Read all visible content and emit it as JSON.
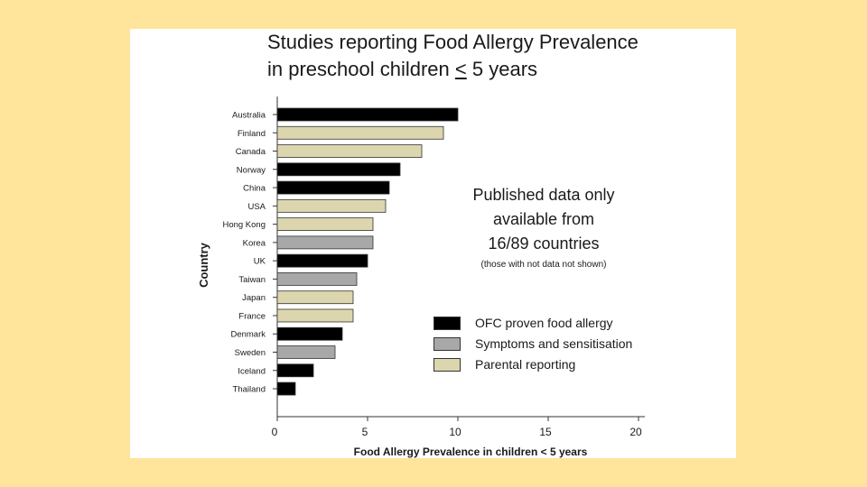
{
  "slide": {
    "title_line1": "Studies reporting Food Allergy Prevalence",
    "title_line2_prefix": "in preschool children ",
    "title_line2_symbol": "<",
    "title_line2_suffix": " 5 years"
  },
  "annotation": {
    "main_lines": [
      "Published data only",
      "available from",
      "16/89 countries"
    ],
    "sub": "(those with not data not shown)"
  },
  "legend": [
    {
      "label": "OFC proven food allergy",
      "color": "#000000"
    },
    {
      "label": "Symptoms and sensitisation",
      "color": "#A8A8A8"
    },
    {
      "label": "Parental reporting",
      "color": "#DCD6AF"
    }
  ],
  "chart_data": {
    "type": "bar",
    "orientation": "horizontal",
    "title": "Studies reporting Food Allergy Prevalence in preschool children < 5 years",
    "xlabel": "Food Allergy Prevalence in children < 5 years",
    "ylabel": "Country",
    "xlim": [
      0,
      20
    ],
    "xticks": [
      0,
      5,
      10,
      15,
      20
    ],
    "categories": [
      "Australia",
      "Finland",
      "Canada",
      "Norway",
      "China",
      "USA",
      "Hong Kong",
      "Korea",
      "UK",
      "Taiwan",
      "Japan",
      "France",
      "Denmark",
      "Sweden",
      "Iceland",
      "Thailand"
    ],
    "values": [
      10.0,
      9.2,
      8.0,
      6.8,
      6.2,
      6.0,
      5.3,
      5.3,
      5.0,
      4.4,
      4.2,
      4.2,
      3.6,
      3.2,
      2.0,
      1.0
    ],
    "groups": [
      "OFC proven food allergy",
      "Parental reporting",
      "Parental reporting",
      "OFC proven food allergy",
      "OFC proven food allergy",
      "Parental reporting",
      "Parental reporting",
      "Symptoms and sensitisation",
      "OFC proven food allergy",
      "Symptoms and sensitisation",
      "Parental reporting",
      "Parental reporting",
      "OFC proven food allergy",
      "Symptoms and sensitisation",
      "OFC proven food allergy",
      "OFC proven food allergy"
    ],
    "group_colors": {
      "OFC proven food allergy": "#000000",
      "Symptoms and sensitisation": "#A8A8A8",
      "Parental reporting": "#DCD6AF"
    },
    "grid": false,
    "legend_position": "right"
  }
}
